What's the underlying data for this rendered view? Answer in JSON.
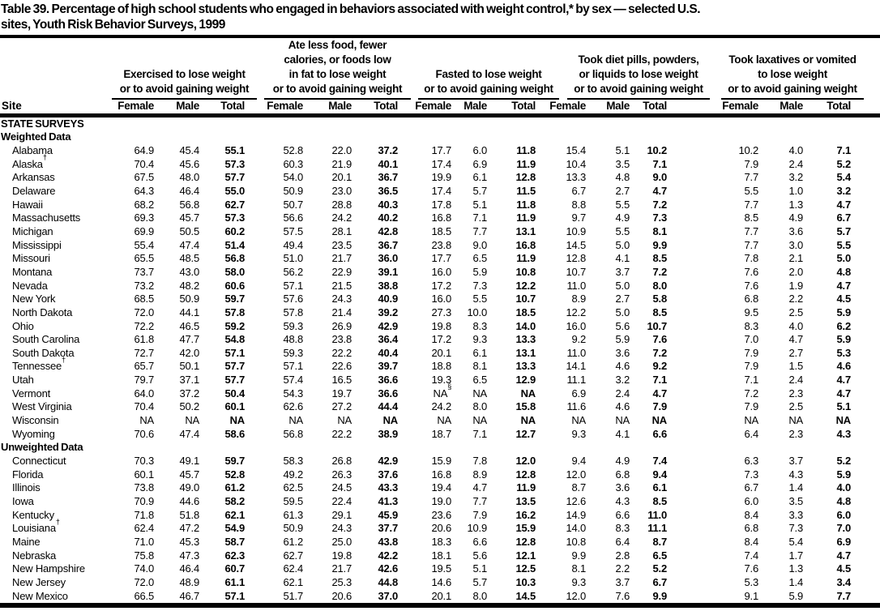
{
  "title_lines": [
    "Table 39. Percentage of high school students who engaged in behaviors associated with weight control,* by sex — selected U.S.",
    "sites, Youth Risk Behavior Surveys, 1999"
  ],
  "colors": {
    "text": "#000000",
    "background": "#ffffff",
    "rule": "#000000"
  },
  "table": {
    "site_header": "Site",
    "sub_columns": [
      "Female",
      "Male",
      "Total"
    ],
    "column_groups": [
      {
        "lines": [
          "Exercised to lose weight",
          "or to avoid gaining weight"
        ]
      },
      {
        "lines": [
          "Ate less food, fewer",
          "calories, or foods low",
          "in fat to lose weight",
          "or to avoid gaining weight"
        ]
      },
      {
        "lines": [
          "Fasted to lose weight",
          "or to avoid gaining weight"
        ]
      },
      {
        "lines": [
          "Took diet pills, powders,",
          "or liquids to lose weight",
          "or to avoid gaining weight"
        ]
      },
      {
        "lines": [
          "Took laxatives or vomited",
          "to lose weight",
          "or to avoid gaining weight"
        ]
      }
    ],
    "sections": [
      {
        "headings": [
          "STATE SURVEYS",
          "Weighted Data"
        ],
        "rows": [
          {
            "site": "Alabama",
            "values": [
              "64.9",
              "45.4",
              "55.1",
              "52.8",
              "22.0",
              "37.2",
              "17.7",
              "6.0",
              "11.8",
              "15.4",
              "5.1",
              "10.2",
              "10.2",
              "4.0",
              "7.1"
            ]
          },
          {
            "site": "Alaska†",
            "values": [
              "70.4",
              "45.6",
              "57.3",
              "60.3",
              "21.9",
              "40.1",
              "17.4",
              "6.9",
              "11.9",
              "10.4",
              "3.5",
              "7.1",
              "7.9",
              "2.4",
              "5.2"
            ]
          },
          {
            "site": "Arkansas",
            "values": [
              "67.5",
              "48.0",
              "57.7",
              "54.0",
              "20.1",
              "36.7",
              "19.9",
              "6.1",
              "12.8",
              "13.3",
              "4.8",
              "9.0",
              "7.7",
              "3.2",
              "5.4"
            ]
          },
          {
            "site": "Delaware",
            "values": [
              "64.3",
              "46.4",
              "55.0",
              "50.9",
              "23.0",
              "36.5",
              "17.4",
              "5.7",
              "11.5",
              "6.7",
              "2.7",
              "4.7",
              "5.5",
              "1.0",
              "3.2"
            ]
          },
          {
            "site": "Hawaii",
            "values": [
              "68.2",
              "56.8",
              "62.7",
              "50.7",
              "28.8",
              "40.3",
              "17.8",
              "5.1",
              "11.8",
              "8.8",
              "5.5",
              "7.2",
              "7.7",
              "1.3",
              "4.7"
            ]
          },
          {
            "site": "Massachusetts",
            "values": [
              "69.3",
              "45.7",
              "57.3",
              "56.6",
              "24.2",
              "40.2",
              "16.8",
              "7.1",
              "11.9",
              "9.7",
              "4.9",
              "7.3",
              "8.5",
              "4.9",
              "6.7"
            ]
          },
          {
            "site": "Michigan",
            "values": [
              "69.9",
              "50.5",
              "60.2",
              "57.5",
              "28.1",
              "42.8",
              "18.5",
              "7.7",
              "13.1",
              "10.9",
              "5.5",
              "8.1",
              "7.7",
              "3.6",
              "5.7"
            ]
          },
          {
            "site": "Mississippi",
            "values": [
              "55.4",
              "47.4",
              "51.4",
              "49.4",
              "23.5",
              "36.7",
              "23.8",
              "9.0",
              "16.8",
              "14.5",
              "5.0",
              "9.9",
              "7.7",
              "3.0",
              "5.5"
            ]
          },
          {
            "site": "Missouri",
            "values": [
              "65.5",
              "48.5",
              "56.8",
              "51.0",
              "21.7",
              "36.0",
              "17.7",
              "6.5",
              "11.9",
              "12.8",
              "4.1",
              "8.5",
              "7.8",
              "2.1",
              "5.0"
            ]
          },
          {
            "site": "Montana",
            "values": [
              "73.7",
              "43.0",
              "58.0",
              "56.2",
              "22.9",
              "39.1",
              "16.0",
              "5.9",
              "10.8",
              "10.7",
              "3.7",
              "7.2",
              "7.6",
              "2.0",
              "4.8"
            ]
          },
          {
            "site": "Nevada",
            "values": [
              "73.2",
              "48.2",
              "60.6",
              "57.1",
              "21.5",
              "38.8",
              "17.2",
              "7.3",
              "12.2",
              "11.0",
              "5.0",
              "8.0",
              "7.6",
              "1.9",
              "4.7"
            ]
          },
          {
            "site": "New York",
            "values": [
              "68.5",
              "50.9",
              "59.7",
              "57.6",
              "24.3",
              "40.9",
              "16.0",
              "5.5",
              "10.7",
              "8.9",
              "2.7",
              "5.8",
              "6.8",
              "2.2",
              "4.5"
            ]
          },
          {
            "site": "North Dakota",
            "values": [
              "72.0",
              "44.1",
              "57.8",
              "57.8",
              "21.4",
              "39.2",
              "27.3",
              "10.0",
              "18.5",
              "12.2",
              "5.0",
              "8.5",
              "9.5",
              "2.5",
              "5.9"
            ]
          },
          {
            "site": "Ohio",
            "values": [
              "72.2",
              "46.5",
              "59.2",
              "59.3",
              "26.9",
              "42.9",
              "19.8",
              "8.3",
              "14.0",
              "16.0",
              "5.6",
              "10.7",
              "8.3",
              "4.0",
              "6.2"
            ]
          },
          {
            "site": "South Carolina",
            "values": [
              "61.8",
              "47.7",
              "54.8",
              "48.8",
              "23.8",
              "36.4",
              "17.2",
              "9.3",
              "13.3",
              "9.2",
              "5.9",
              "7.6",
              "7.0",
              "4.7",
              "5.9"
            ]
          },
          {
            "site": "South Dakota",
            "values": [
              "72.7",
              "42.0",
              "57.1",
              "59.3",
              "22.2",
              "40.4",
              "20.1",
              "6.1",
              "13.1",
              "11.0",
              "3.6",
              "7.2",
              "7.9",
              "2.7",
              "5.3"
            ]
          },
          {
            "site": "Tennessee†",
            "values": [
              "65.7",
              "50.1",
              "57.7",
              "57.1",
              "22.6",
              "39.7",
              "18.8",
              "8.1",
              "13.3",
              "14.1",
              "4.6",
              "9.2",
              "7.9",
              "1.5",
              "4.6"
            ]
          },
          {
            "site": "Utah",
            "values": [
              "79.7",
              "37.1",
              "57.7",
              "57.4",
              "16.5",
              "36.6",
              "19.3",
              "6.5",
              "12.9",
              "11.1",
              "3.2",
              "7.1",
              "7.1",
              "2.4",
              "4.7"
            ]
          },
          {
            "site": "Vermont",
            "values": [
              "64.0",
              "37.2",
              "50.4",
              "54.3",
              "19.7",
              "36.6",
              "NA§",
              "NA",
              "NA",
              "6.9",
              "2.4",
              "4.7",
              "7.2",
              "2.3",
              "4.7"
            ]
          },
          {
            "site": "West Virginia",
            "values": [
              "70.4",
              "50.2",
              "60.1",
              "62.6",
              "27.2",
              "44.4",
              "24.2",
              "8.0",
              "15.8",
              "11.6",
              "4.6",
              "7.9",
              "7.9",
              "2.5",
              "5.1"
            ]
          },
          {
            "site": "Wisconsin",
            "values": [
              "NA",
              "NA",
              "NA",
              "NA",
              "NA",
              "NA",
              "NA",
              "NA",
              "NA",
              "NA",
              "NA",
              "NA",
              "NA",
              "NA",
              "NA"
            ]
          },
          {
            "site": "Wyoming",
            "values": [
              "70.6",
              "47.4",
              "58.6",
              "56.8",
              "22.2",
              "38.9",
              "18.7",
              "7.1",
              "12.7",
              "9.3",
              "4.1",
              "6.6",
              "6.4",
              "2.3",
              "4.3"
            ]
          }
        ]
      },
      {
        "headings": [
          "Unweighted Data"
        ],
        "rows": [
          {
            "site": "Connecticut",
            "values": [
              "70.3",
              "49.1",
              "59.7",
              "58.3",
              "26.8",
              "42.9",
              "15.9",
              "7.8",
              "12.0",
              "9.4",
              "4.9",
              "7.4",
              "6.3",
              "3.7",
              "5.2"
            ]
          },
          {
            "site": "Florida",
            "values": [
              "60.1",
              "45.7",
              "52.8",
              "49.2",
              "26.3",
              "37.6",
              "16.8",
              "8.9",
              "12.8",
              "12.0",
              "6.8",
              "9.4",
              "7.3",
              "4.3",
              "5.9"
            ]
          },
          {
            "site": "Illinois",
            "values": [
              "73.8",
              "49.0",
              "61.2",
              "62.5",
              "24.5",
              "43.3",
              "19.4",
              "4.7",
              "11.9",
              "8.7",
              "3.6",
              "6.1",
              "6.7",
              "1.4",
              "4.0"
            ]
          },
          {
            "site": "Iowa",
            "values": [
              "70.9",
              "44.6",
              "58.2",
              "59.5",
              "22.4",
              "41.3",
              "19.0",
              "7.7",
              "13.5",
              "12.6",
              "4.3",
              "8.5",
              "6.0",
              "3.5",
              "4.8"
            ]
          },
          {
            "site": "Kentucky",
            "values": [
              "71.8",
              "51.8",
              "62.1",
              "61.3",
              "29.1",
              "45.9",
              "23.6",
              "7.9",
              "16.2",
              "14.9",
              "6.6",
              "11.0",
              "8.4",
              "3.3",
              "6.0"
            ]
          },
          {
            "site": "Louisiana†",
            "values": [
              "62.4",
              "47.2",
              "54.9",
              "50.9",
              "24.3",
              "37.7",
              "20.6",
              "10.9",
              "15.9",
              "14.0",
              "8.3",
              "11.1",
              "6.8",
              "7.3",
              "7.0"
            ]
          },
          {
            "site": "Maine",
            "values": [
              "71.0",
              "45.3",
              "58.7",
              "61.2",
              "25.0",
              "43.8",
              "18.3",
              "6.6",
              "12.8",
              "10.8",
              "6.4",
              "8.7",
              "8.4",
              "5.4",
              "6.9"
            ]
          },
          {
            "site": "Nebraska",
            "values": [
              "75.8",
              "47.3",
              "62.3",
              "62.7",
              "19.8",
              "42.2",
              "18.1",
              "5.6",
              "12.1",
              "9.9",
              "2.8",
              "6.5",
              "7.4",
              "1.7",
              "4.7"
            ]
          },
          {
            "site": "New Hampshire",
            "values": [
              "74.0",
              "46.4",
              "60.7",
              "62.4",
              "21.7",
              "42.6",
              "19.5",
              "5.1",
              "12.5",
              "8.1",
              "2.2",
              "5.2",
              "7.6",
              "1.3",
              "4.5"
            ]
          },
          {
            "site": "New Jersey",
            "values": [
              "72.0",
              "48.9",
              "61.1",
              "62.1",
              "25.3",
              "44.8",
              "14.6",
              "5.7",
              "10.3",
              "9.3",
              "3.7",
              "6.7",
              "5.3",
              "1.4",
              "3.4"
            ]
          },
          {
            "site": "New Mexico",
            "values": [
              "66.5",
              "46.7",
              "57.1",
              "51.7",
              "20.6",
              "37.0",
              "20.1",
              "8.0",
              "14.5",
              "12.0",
              "7.6",
              "9.9",
              "9.1",
              "5.9",
              "7.7"
            ]
          }
        ]
      }
    ]
  }
}
